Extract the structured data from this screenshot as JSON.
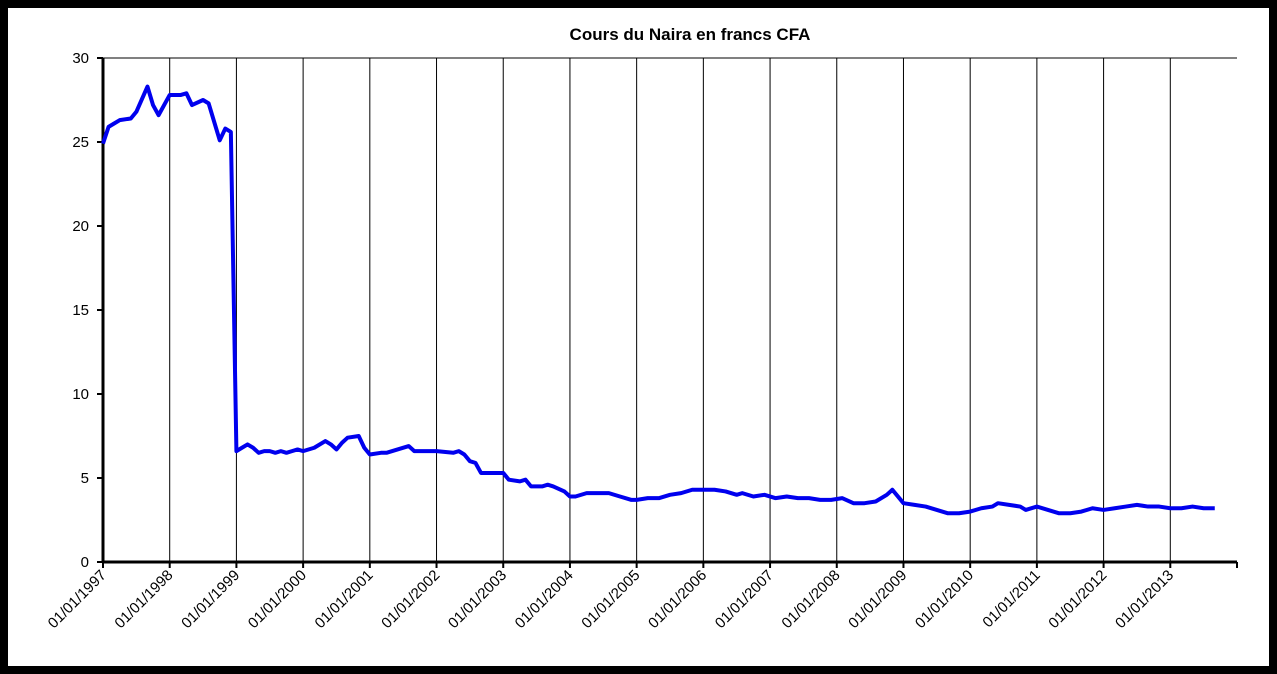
{
  "chart_data": {
    "type": "line",
    "title": "Cours du Naira en francs CFA",
    "xlim": [
      "01/01/1997",
      "01/01/2014"
    ],
    "xticks": [
      "01/01/1997",
      "01/01/1998",
      "01/01/1999",
      "01/01/2000",
      "01/01/2001",
      "01/01/2002",
      "01/01/2003",
      "01/01/2004",
      "01/01/2005",
      "01/01/2006",
      "01/01/2007",
      "01/01/2008",
      "01/01/2009",
      "01/01/2010",
      "01/01/2011",
      "01/01/2012",
      "01/01/2013"
    ],
    "ylim": [
      0,
      30
    ],
    "yticks": [
      0,
      5,
      10,
      15,
      20,
      25,
      30
    ],
    "grid": true,
    "x": [
      "01/01/1997",
      "01/02/1997",
      "01/03/1997",
      "01/04/1997",
      "01/06/1997",
      "01/07/1997",
      "01/09/1997",
      "01/10/1997",
      "01/11/1997",
      "01/01/1998",
      "01/03/1998",
      "01/04/1998",
      "01/05/1998",
      "01/07/1998",
      "01/08/1998",
      "01/10/1998",
      "01/11/1998",
      "01/12/1998",
      "01/01/1999",
      "01/02/1999",
      "01/03/1999",
      "01/04/1999",
      "01/05/1999",
      "01/06/1999",
      "01/07/1999",
      "01/08/1999",
      "01/09/1999",
      "01/10/1999",
      "01/11/1999",
      "01/12/1999",
      "01/01/2000",
      "01/03/2000",
      "01/05/2000",
      "01/06/2000",
      "01/07/2000",
      "01/08/2000",
      "01/09/2000",
      "01/11/2000",
      "01/12/2000",
      "01/01/2001",
      "01/03/2001",
      "01/04/2001",
      "01/06/2001",
      "01/08/2001",
      "01/09/2001",
      "01/12/2001",
      "01/01/2002",
      "01/04/2002",
      "01/05/2002",
      "01/06/2002",
      "01/07/2002",
      "01/08/2002",
      "01/09/2002",
      "01/01/2003",
      "01/02/2003",
      "01/04/2003",
      "01/05/2003",
      "01/06/2003",
      "01/08/2003",
      "01/09/2003",
      "01/10/2003",
      "01/12/2003",
      "01/01/2004",
      "01/02/2004",
      "01/04/2004",
      "01/06/2004",
      "01/08/2004",
      "01/10/2004",
      "01/12/2004",
      "01/01/2005",
      "01/03/2005",
      "01/05/2005",
      "01/07/2005",
      "01/09/2005",
      "01/11/2005",
      "01/01/2006",
      "01/03/2006",
      "01/05/2006",
      "01/07/2006",
      "01/08/2006",
      "01/10/2006",
      "01/12/2006",
      "01/02/2007",
      "01/04/2007",
      "01/06/2007",
      "01/08/2007",
      "01/10/2007",
      "01/12/2007",
      "01/02/2008",
      "01/04/2008",
      "01/06/2008",
      "01/08/2008",
      "01/10/2008",
      "01/11/2008",
      "01/01/2009",
      "01/03/2009",
      "01/05/2009",
      "01/07/2009",
      "01/09/2009",
      "01/11/2009",
      "01/01/2010",
      "01/03/2010",
      "01/05/2010",
      "01/06/2010",
      "01/08/2010",
      "01/10/2010",
      "01/11/2010",
      "01/01/2011",
      "01/03/2011",
      "01/05/2011",
      "01/07/2011",
      "01/09/2011",
      "01/11/2011",
      "01/01/2012",
      "01/03/2012",
      "01/05/2012",
      "01/07/2012",
      "01/09/2012",
      "01/11/2012",
      "01/01/2013",
      "01/03/2013",
      "01/05/2013",
      "01/07/2013",
      "01/09/2013"
    ],
    "series": [
      {
        "color": "#0000ee",
        "values": [
          24.9,
          25.9,
          26.1,
          26.3,
          26.4,
          26.8,
          28.3,
          27.2,
          26.6,
          27.8,
          27.8,
          27.9,
          27.2,
          27.5,
          27.3,
          25.1,
          25.8,
          25.6,
          6.6,
          6.8,
          7.0,
          6.8,
          6.5,
          6.6,
          6.6,
          6.5,
          6.6,
          6.5,
          6.6,
          6.7,
          6.6,
          6.8,
          7.2,
          7.0,
          6.7,
          7.1,
          7.4,
          7.5,
          6.8,
          6.4,
          6.5,
          6.5,
          6.7,
          6.9,
          6.6,
          6.6,
          6.6,
          6.5,
          6.6,
          6.4,
          6.0,
          5.9,
          5.3,
          5.3,
          4.9,
          4.8,
          4.9,
          4.5,
          4.5,
          4.6,
          4.5,
          4.2,
          3.9,
          3.9,
          4.1,
          4.1,
          4.1,
          3.9,
          3.7,
          3.7,
          3.8,
          3.8,
          4.0,
          4.1,
          4.3,
          4.3,
          4.3,
          4.2,
          4.0,
          4.1,
          3.9,
          4.0,
          3.8,
          3.9,
          3.8,
          3.8,
          3.7,
          3.7,
          3.8,
          3.5,
          3.5,
          3.6,
          4.0,
          4.3,
          3.5,
          3.4,
          3.3,
          3.1,
          2.9,
          2.9,
          3.0,
          3.2,
          3.3,
          3.5,
          3.4,
          3.3,
          3.1,
          3.3,
          3.1,
          2.9,
          2.9,
          3.0,
          3.2,
          3.1,
          3.2,
          3.3,
          3.4,
          3.3,
          3.3,
          3.2,
          3.2,
          3.3,
          3.2,
          3.2
        ]
      }
    ]
  }
}
